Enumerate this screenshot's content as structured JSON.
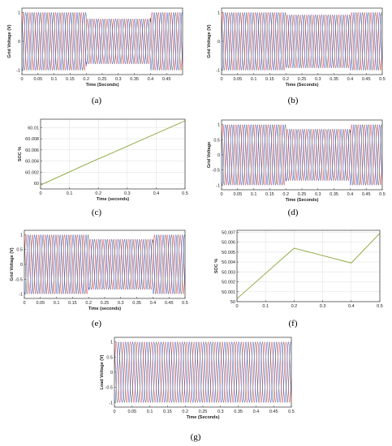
{
  "charts": [
    {
      "key": "a",
      "type": "wave3",
      "caption": "(a)",
      "xlabel": "Time (Seconds)",
      "ylabel": "Grid Voltage (V)",
      "xlim": [
        0,
        0.5
      ],
      "ylim": [
        -1.15,
        1.15
      ],
      "xticks": [
        0,
        0.05,
        0.1,
        0.15,
        0.2,
        0.25,
        0.3,
        0.35,
        0.4,
        0.45
      ],
      "xtick_labels": [
        "0",
        "0.05",
        "0.1",
        "0.15",
        "0.2",
        "0.25",
        "0.3",
        "0.35",
        "0.4",
        "0.45"
      ],
      "yticks": [
        -1,
        0,
        1
      ],
      "ytick_labels": [
        "-1",
        "0",
        "1"
      ],
      "amplitude_segments": [
        {
          "x0": 0,
          "x1": 0.2,
          "amp": 1.0
        },
        {
          "x0": 0.2,
          "x1": 0.4,
          "amp": 0.78
        },
        {
          "x0": 0.4,
          "x1": 0.5,
          "amp": 1.0
        }
      ],
      "colors": [
        "#d62728",
        "#1f3fd0",
        "#444444"
      ]
    },
    {
      "key": "b",
      "type": "wave3",
      "caption": "(b)",
      "xlabel": "Time (Seconds)",
      "ylabel": "Grid Voltage (V)",
      "xlim": [
        0,
        0.5
      ],
      "ylim": [
        -1.15,
        1.15
      ],
      "xticks": [
        0,
        0.05,
        0.1,
        0.15,
        0.2,
        0.25,
        0.3,
        0.35,
        0.4,
        0.45,
        0.5
      ],
      "xtick_labels": [
        "0",
        "0.05",
        "0.1",
        "0.15",
        "0.2",
        "0.25",
        "0.3",
        "0.35",
        "0.4",
        "0.45",
        "0.5"
      ],
      "yticks": [
        -1,
        0,
        1
      ],
      "ytick_labels": [
        "-1",
        "0",
        "1"
      ],
      "amplitude_segments": [
        {
          "x0": 0,
          "x1": 0.2,
          "amp": 1.0
        },
        {
          "x0": 0.2,
          "x1": 0.4,
          "amp": 0.92
        },
        {
          "x0": 0.4,
          "x1": 0.5,
          "amp": 1.0
        }
      ],
      "colors": [
        "#d62728",
        "#1f3fd0",
        "#444444"
      ]
    },
    {
      "key": "c",
      "type": "line",
      "caption": "(c)",
      "xlabel": "Time (seconds)",
      "ylabel": "SOC %",
      "xlim": [
        0,
        0.5
      ],
      "ylim": [
        59.999,
        60.0115
      ],
      "xticks": [
        0,
        0.1,
        0.2,
        0.3,
        0.4,
        0.5
      ],
      "xtick_labels": [
        "0",
        "0.1",
        "0.2",
        "0.3",
        "0.4",
        "0.5"
      ],
      "yticks": [
        60,
        60.002,
        60.004,
        60.006,
        60.008,
        60.01
      ],
      "ytick_labels": [
        "60",
        "60.002",
        "60.004",
        "60.006",
        "60.008",
        "60.01"
      ],
      "grid": true,
      "series": [
        {
          "x": [
            0,
            0.2,
            0.21,
            0.5
          ],
          "y": [
            59.9997,
            60.0044,
            60.0046,
            60.0112
          ],
          "color": "#8aa63a"
        }
      ]
    },
    {
      "key": "d",
      "type": "wave3",
      "caption": "(d)",
      "xlabel": "Time (Seconds)",
      "ylabel": "Grid Voltage",
      "xlim": [
        0,
        0.5
      ],
      "ylim": [
        -1.15,
        1.15
      ],
      "xticks": [
        0,
        0.05,
        0.1,
        0.15,
        0.2,
        0.25,
        0.3,
        0.35,
        0.4,
        0.45,
        0.5
      ],
      "xtick_labels": [
        "0",
        "0.05",
        "0.1",
        "0.15",
        "0.2",
        "0.25",
        "0.3",
        "0.35",
        "0.4",
        "0.45",
        "0.5"
      ],
      "yticks": [
        -1,
        -0.5,
        0,
        0.5,
        1
      ],
      "ytick_labels": [
        "-1",
        "-0.5",
        "0",
        "0.5",
        "1"
      ],
      "amplitude_segments": [
        {
          "x0": 0,
          "x1": 0.2,
          "amp": 1.0
        },
        {
          "x0": 0.2,
          "x1": 0.4,
          "amp": 0.85
        },
        {
          "x0": 0.4,
          "x1": 0.5,
          "amp": 1.0
        }
      ],
      "colors": [
        "#d62728",
        "#1f3fd0",
        "#444444"
      ]
    },
    {
      "key": "e",
      "type": "wave3",
      "caption": "(e)",
      "xlabel": "Time (seconds)",
      "ylabel": "Grid Voltage (V)",
      "xlim": [
        0,
        0.5
      ],
      "ylim": [
        -1.15,
        1.15
      ],
      "xticks": [
        0,
        0.05,
        0.1,
        0.15,
        0.2,
        0.25,
        0.3,
        0.35,
        0.4,
        0.45,
        0.5
      ],
      "xtick_labels": [
        "0",
        "0.05",
        "0.1",
        "0.15",
        "0.2",
        "0.25",
        "0.3",
        "0.35",
        "0.4",
        "0.45",
        "0.5"
      ],
      "yticks": [
        -1,
        -0.5,
        0,
        0.5,
        1
      ],
      "ytick_labels": [
        "-1",
        "-0.5",
        "0",
        "0.5",
        "1"
      ],
      "amplitude_segments": [
        {
          "x0": 0,
          "x1": 0.2,
          "amp": 1.0
        },
        {
          "x0": 0.2,
          "x1": 0.4,
          "amp": 0.85
        },
        {
          "x0": 0.4,
          "x1": 0.5,
          "amp": 1.0
        }
      ],
      "colors": [
        "#d62728",
        "#1f3fd0",
        "#444444"
      ]
    },
    {
      "key": "f",
      "type": "line",
      "caption": "(f)",
      "xlabel": "",
      "ylabel": "SOC %",
      "xlim": [
        0,
        0.5
      ],
      "ylim": [
        50.0,
        50.0072
      ],
      "xticks": [
        0,
        0.1,
        0.2,
        0.3,
        0.4,
        0.5
      ],
      "xtick_labels": [
        "0",
        "0.1",
        "0.2",
        "0.3",
        "0.4",
        "0.5"
      ],
      "yticks": [
        50,
        50.001,
        50.002,
        50.003,
        50.004,
        50.005,
        50.006,
        50.007
      ],
      "ytick_labels": [
        "50",
        "50.001",
        "50.002",
        "50.003",
        "50.004",
        "50.005",
        "50.006",
        "50.007"
      ],
      "grid": true,
      "series": [
        {
          "x": [
            0,
            0.2,
            0.4,
            0.5
          ],
          "y": [
            50.0003,
            50.0054,
            50.0039,
            50.0069
          ],
          "color": "#8aa63a"
        }
      ]
    },
    {
      "key": "g",
      "type": "wave3",
      "caption": "(g)",
      "xlabel": "Time (Seconds)",
      "ylabel": "Load Voltage (V)",
      "xlim": [
        0,
        0.5
      ],
      "ylim": [
        -1.15,
        1.15
      ],
      "xticks": [
        0,
        0.05,
        0.1,
        0.15,
        0.2,
        0.25,
        0.3,
        0.35,
        0.4,
        0.45,
        0.5
      ],
      "xtick_labels": [
        "0",
        "0.05",
        "0.1",
        "0.15",
        "0.2",
        "0.25",
        "0.3",
        "0.35",
        "0.4",
        "0.45",
        "0.5"
      ],
      "yticks": [
        -1,
        -0.5,
        0,
        0.5,
        1
      ],
      "ytick_labels": [
        "-1",
        "-0.5",
        "0",
        "0.5",
        "1"
      ],
      "amplitude_segments": [
        {
          "x0": 0,
          "x1": 0.2,
          "amp": 1.0
        },
        {
          "x0": 0.2,
          "x1": 0.4,
          "amp": 1.0
        },
        {
          "x0": 0.4,
          "x1": 0.5,
          "amp": 1.0
        }
      ],
      "colors": [
        "#d62728",
        "#1f3fd0",
        "#444444"
      ]
    }
  ]
}
